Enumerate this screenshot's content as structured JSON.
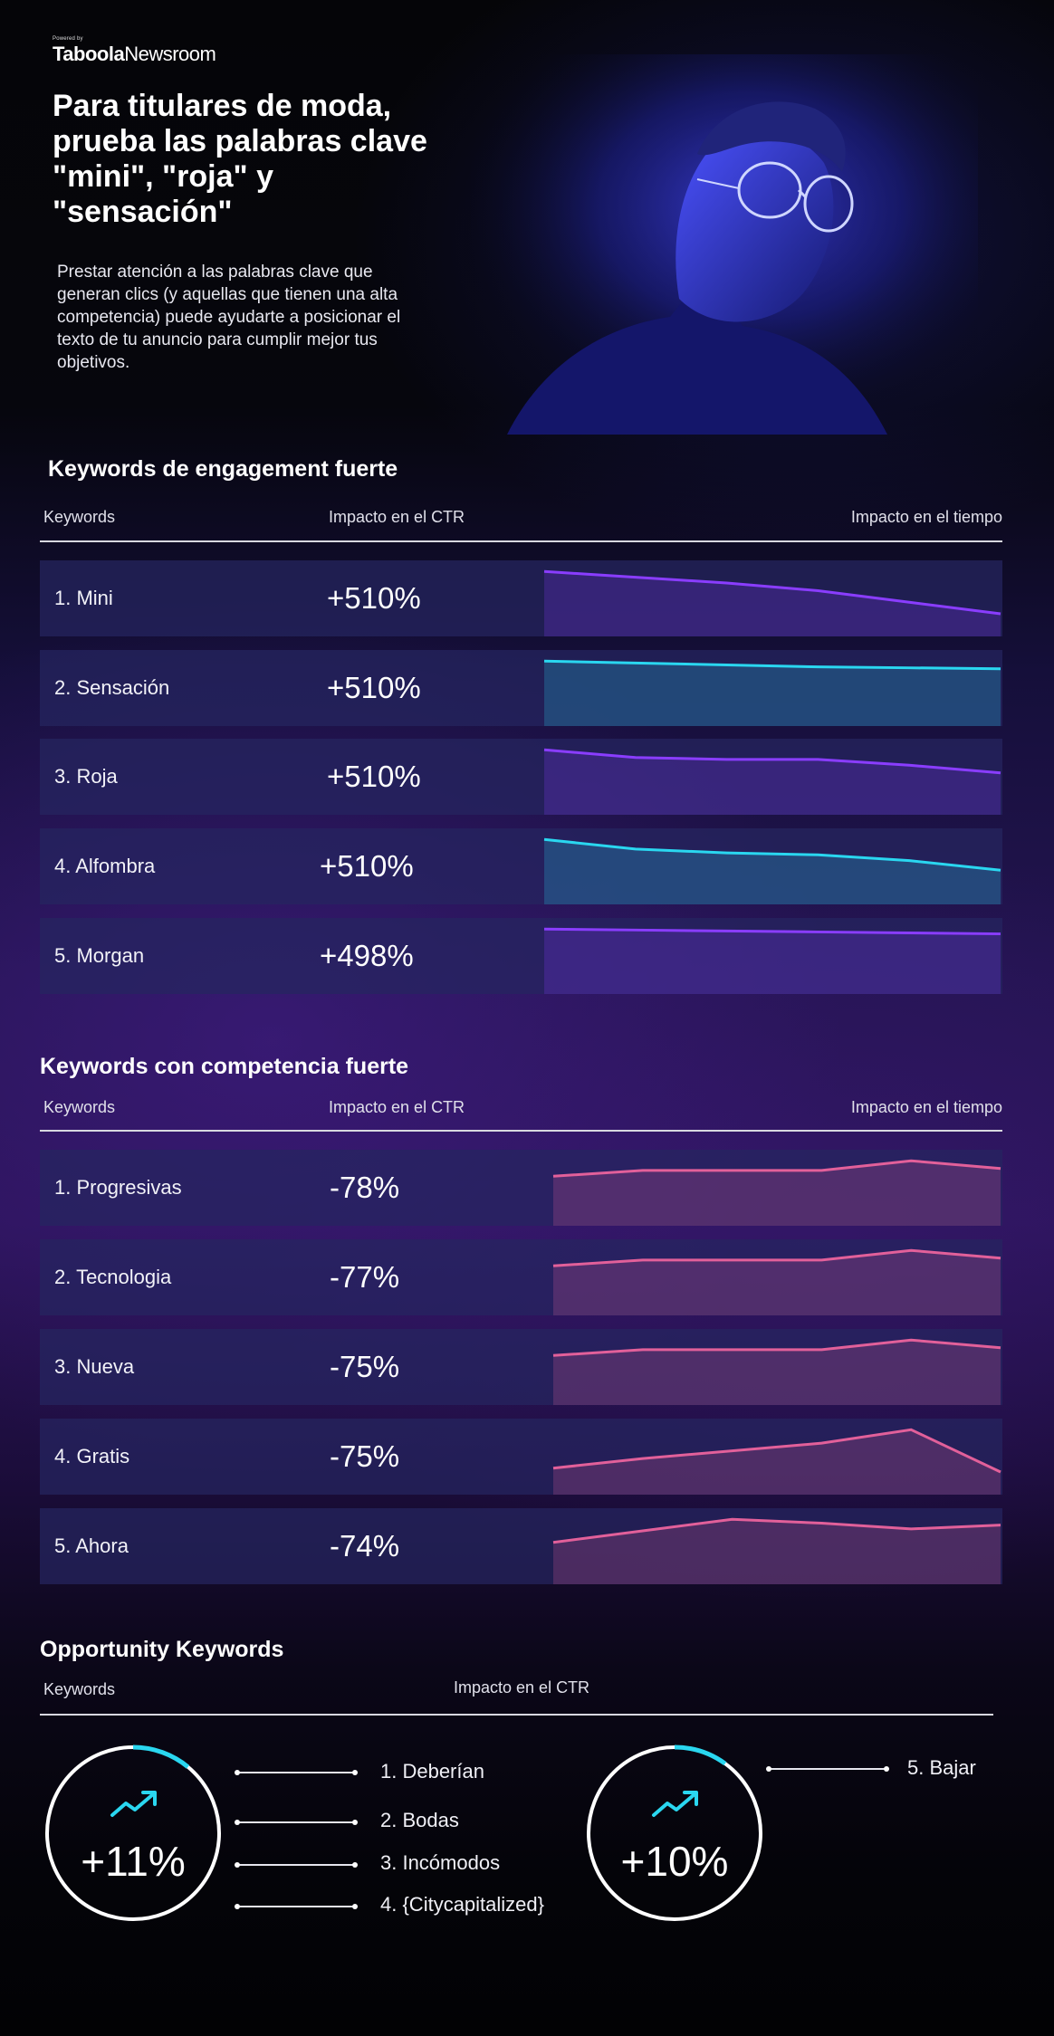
{
  "brand": {
    "powered_by": "Powered by",
    "name": "Taboola",
    "product": "Newsroom"
  },
  "hero": {
    "title": "Para titulares de moda, prueba las palabras clave \"mini\", \"roja\" y \"sensación\"",
    "subtitle": "Prestar atención a las palabras clave que generan clics (y aquellas que tienen una alta competencia) puede ayudarte a posicionar el texto de tu anuncio para cumplir mejor tus objetivos."
  },
  "engagement": {
    "title": "Keywords de engagement fuerte",
    "col_keywords": "Keywords",
    "col_ctr": "Impacto en el CTR",
    "col_time": "Impacto en el tiempo",
    "rows": [
      {
        "keyword": "1. Mini",
        "ctr": "+510%",
        "color": "#8a3dff",
        "trend": [
          100,
          97,
          94,
          90,
          84,
          78
        ]
      },
      {
        "keyword": "2. Sensación",
        "ctr": "+510%",
        "color": "#2ad7f0",
        "trend": [
          100,
          99,
          98,
          97,
          96.5,
          96
        ]
      },
      {
        "keyword": "3. Roja",
        "ctr": "+510%",
        "color": "#8a3dff",
        "trend": [
          100,
          96,
          95,
          95,
          92,
          88
        ]
      },
      {
        "keyword": "4. Alfombra",
        "ctr": "+510%",
        "color": "#2ad7f0",
        "trend": [
          100,
          95,
          93,
          92,
          89,
          84
        ]
      },
      {
        "keyword": "5. Morgan",
        "ctr": "+498%",
        "color": "#8a3dff",
        "trend": [
          100,
          99.5,
          99,
          98.5,
          98,
          97.5
        ]
      }
    ]
  },
  "competition": {
    "title": "Keywords con competencia fuerte",
    "col_keywords": "Keywords",
    "col_ctr": "Impacto en el CTR",
    "col_time": "Impacto en el tiempo",
    "rows": [
      {
        "keyword": "1. Progresivas",
        "ctr": "-78%",
        "color": "#e2609a",
        "trend": [
          92,
          95,
          95,
          95,
          100,
          96
        ]
      },
      {
        "keyword": "2. Tecnologia",
        "ctr": "-77%",
        "color": "#e2609a",
        "trend": [
          92,
          95,
          95,
          95,
          100,
          96
        ]
      },
      {
        "keyword": "3. Nueva",
        "ctr": "-75%",
        "color": "#e2609a",
        "trend": [
          92,
          95,
          95,
          95,
          100,
          96
        ]
      },
      {
        "keyword": "4. Gratis",
        "ctr": "-75%",
        "color": "#e2609a",
        "trend": [
          80,
          85,
          89,
          93,
          100,
          78
        ]
      },
      {
        "keyword": "5. Ahora",
        "ctr": "-74%",
        "color": "#e2609a",
        "trend": [
          88,
          94,
          100,
          98,
          95,
          97
        ]
      }
    ]
  },
  "opportunity": {
    "title": "Opportunity Keywords",
    "col_keywords": "Keywords",
    "col_ctr": "Impacto en el CTR",
    "groups": [
      {
        "value": "+11%",
        "progress": 0.11,
        "items": [
          "1. Deberían",
          "2. Bodas",
          "3. Incómodos",
          "4. {Citycapitalized}"
        ]
      },
      {
        "value": "+10%",
        "progress": 0.1,
        "items": [
          "5. Bajar"
        ]
      }
    ]
  },
  "colors": {
    "accent_cyan": "#2ad7f0",
    "accent_purple": "#8a3dff",
    "accent_pink": "#e2609a"
  }
}
